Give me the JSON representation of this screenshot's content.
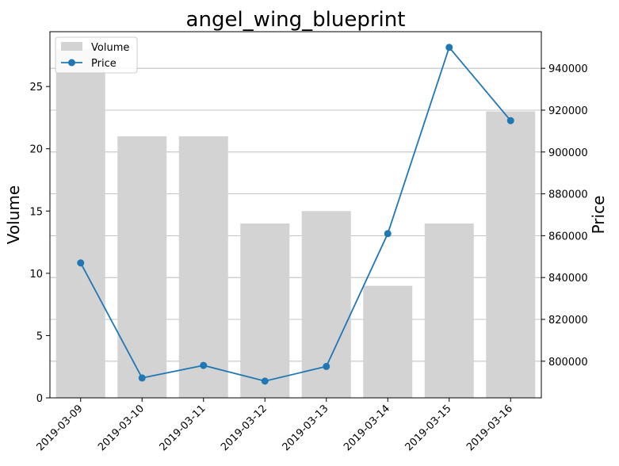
{
  "chart_data": {
    "type": "bar",
    "title": "angel_wing_blueprint",
    "categories": [
      "2019-03-09",
      "2019-03-10",
      "2019-03-11",
      "2019-03-12",
      "2019-03-13",
      "2019-03-14",
      "2019-03-15",
      "2019-03-16"
    ],
    "series": [
      {
        "name": "Volume",
        "type": "bar",
        "axis": "left",
        "color": "#d3d3d3",
        "values": [
          28,
          21,
          21,
          14,
          15,
          9,
          14,
          23
        ]
      },
      {
        "name": "Price",
        "type": "line",
        "axis": "right",
        "color": "#1f77b4",
        "marker": "circle",
        "values": [
          847000,
          792000,
          798000,
          790500,
          797500,
          861000,
          950000,
          915000
        ]
      }
    ],
    "left_axis": {
      "label": "Volume",
      "range": [
        0,
        29.4
      ],
      "ticks": [
        0,
        5,
        10,
        15,
        20,
        25
      ]
    },
    "right_axis": {
      "label": "Price",
      "range": [
        782500,
        957500
      ],
      "ticks": [
        800000,
        820000,
        840000,
        860000,
        880000,
        900000,
        920000,
        940000
      ]
    },
    "x_tick_rotation_deg": 45,
    "grid": "horizontal lines on right axis ticks",
    "legend": {
      "placement": "top-left",
      "entries": [
        "Volume",
        "Price"
      ]
    }
  }
}
